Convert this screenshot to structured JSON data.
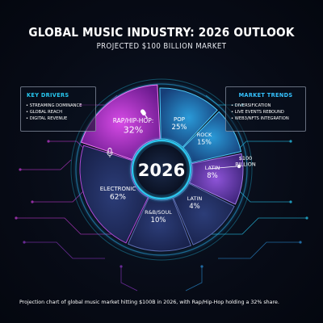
{
  "title": "GLOBAL MUSIC INDUSTRY: 2026 OUTLOOK",
  "subtitle": "PROJECTED $100 BILLION MARKET",
  "left_panel": {
    "heading": "KEY DRIVERS",
    "items": [
      "STREAMING DOMINANCE",
      "GLOBAL REACH",
      "DIGITAL REVENUE"
    ]
  },
  "right_panel": {
    "heading": "MARKET TRENDS",
    "items": [
      "DIVERSIFICATION",
      "LIVE EVENTS REBOUND",
      "WEB3/NFTS INTEGRATION"
    ]
  },
  "caption": "Projection chart of global music market hitting $100B in 2026, with Rap/Hip-Hop holding a 32% share.",
  "colors": {
    "accent_cyan": "#27c8f0",
    "accent_magenta": "#d23ad8",
    "background": "#070b16"
  },
  "icons": [
    "microphone-icon",
    "microphone-icon-small"
  ],
  "chart_data": {
    "type": "pie",
    "center_label": "2026",
    "total_label": "$100 BILLION",
    "slices": [
      {
        "label": "RAP/HIP-HOP",
        "text": "32%",
        "value": 32
      },
      {
        "label": "POP",
        "text": "25%",
        "value": 25
      },
      {
        "label": "ROCK",
        "text": "15%",
        "value": 15
      },
      {
        "label": "LATIN",
        "text": "8%",
        "value": 8
      },
      {
        "label": "LATIN",
        "text": "4%",
        "value": 4
      },
      {
        "label": "R&B/SOUL",
        "text": "10%",
        "value": 10
      },
      {
        "label": "ELECTRONIC",
        "text": "62%",
        "value": 62
      }
    ]
  }
}
